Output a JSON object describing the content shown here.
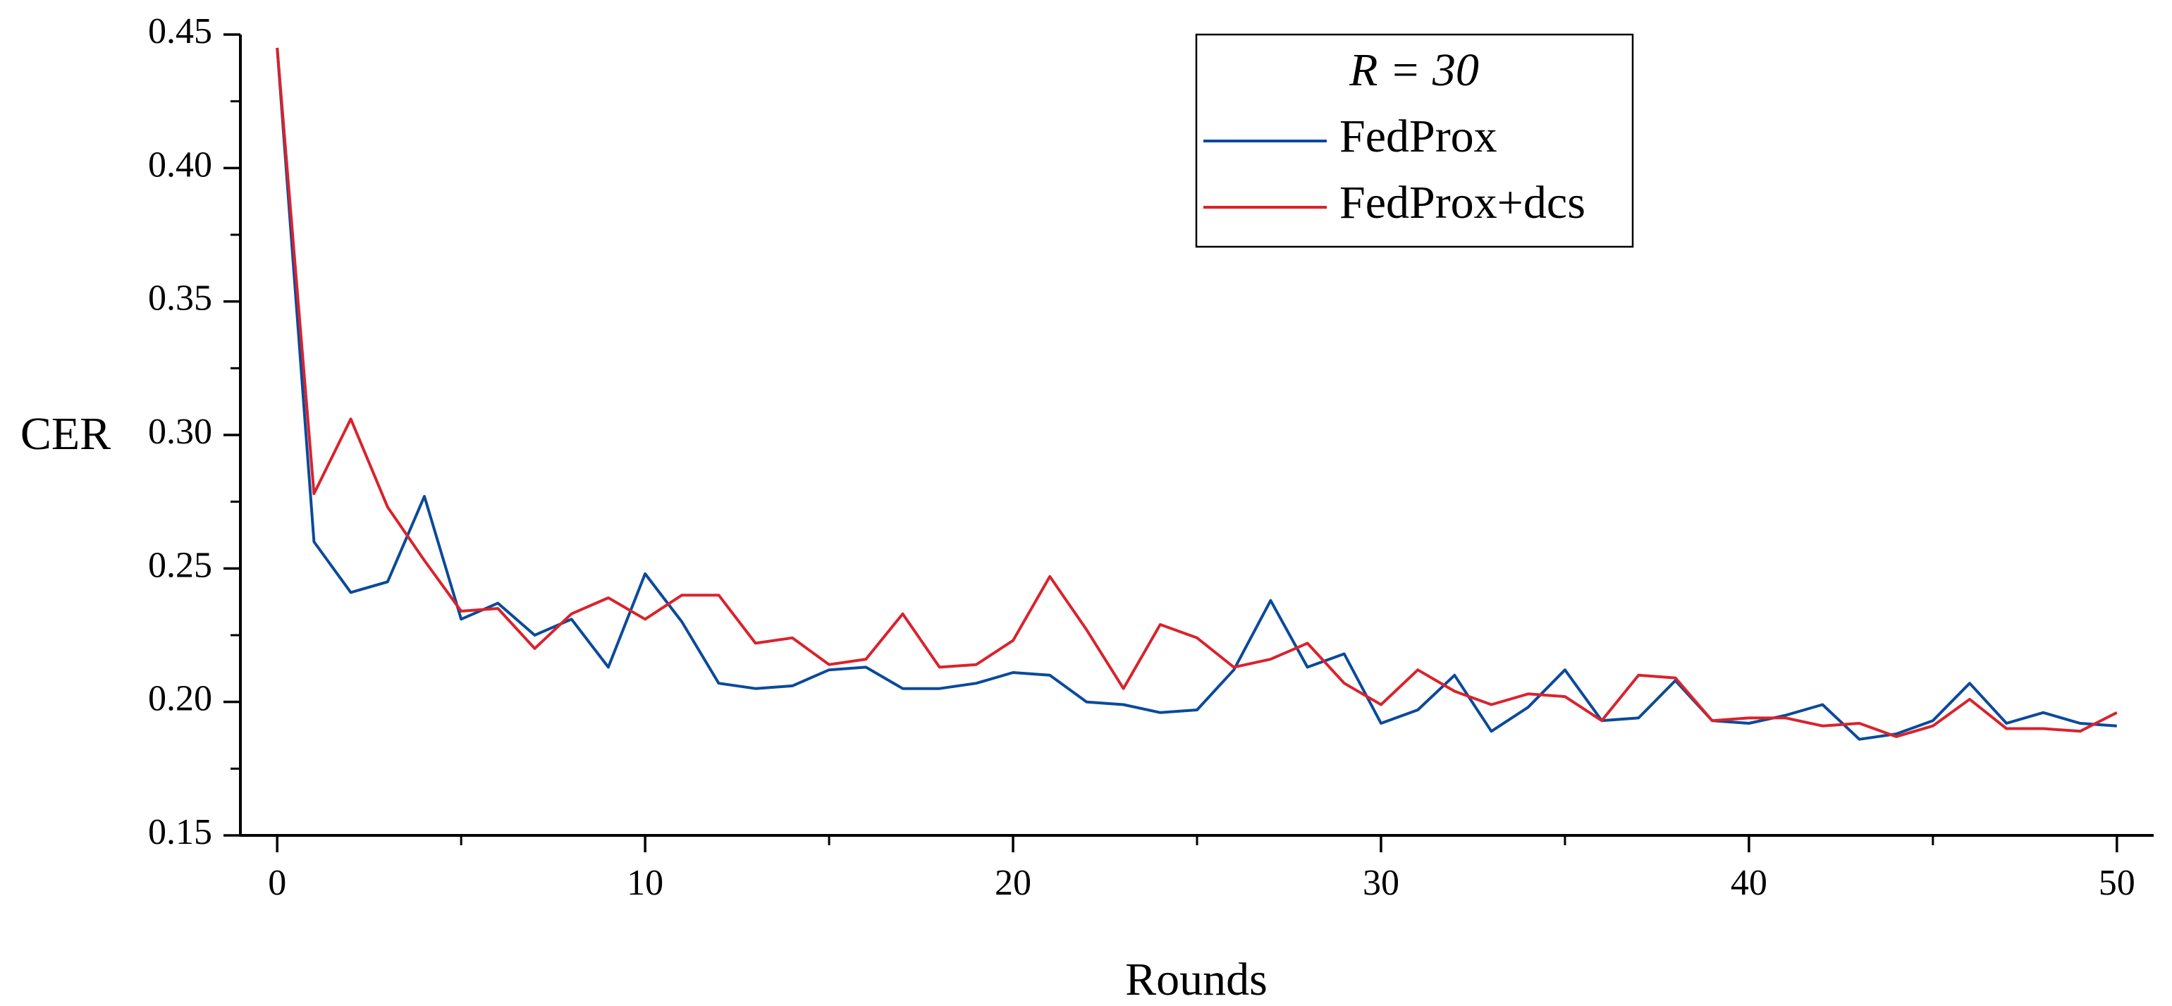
{
  "chart_data": {
    "type": "line",
    "title": "",
    "xlabel": "Rounds",
    "ylabel": "CER",
    "xlim": [
      -1,
      51.0
    ],
    "ylim": [
      0.15,
      0.45
    ],
    "x_ticks": [
      0,
      10,
      20,
      30,
      40,
      50
    ],
    "x_minor_ticks": [
      5,
      15,
      25,
      35,
      45
    ],
    "y_ticks": [
      0.15,
      0.2,
      0.25,
      0.3,
      0.35,
      0.4,
      0.45
    ],
    "y_tick_labels": [
      "0.15",
      "0.20",
      "0.25",
      "0.30",
      "0.35",
      "0.40",
      "0.45"
    ],
    "y_minor_ticks": [
      0.175,
      0.225,
      0.275,
      0.325,
      0.375,
      0.425
    ],
    "legend": {
      "position": "top-center",
      "title": "R = 30",
      "title_var": "R",
      "title_rest": " = 30"
    },
    "x": [
      0,
      1,
      2,
      3,
      4,
      5,
      6,
      7,
      8,
      9,
      10,
      11,
      12,
      13,
      14,
      15,
      16,
      17,
      18,
      19,
      20,
      21,
      22,
      23,
      24,
      25,
      26,
      27,
      28,
      29,
      30,
      31,
      32,
      33,
      34,
      35,
      36,
      37,
      38,
      39,
      40,
      41,
      42,
      43,
      44,
      45,
      46,
      47,
      48,
      49,
      50
    ],
    "series": [
      {
        "name": "FedProx",
        "color": "#0B4A9A",
        "values": [
          0.445,
          0.26,
          0.241,
          0.245,
          0.277,
          0.231,
          0.237,
          0.225,
          0.231,
          0.213,
          0.248,
          0.23,
          0.207,
          0.205,
          0.206,
          0.212,
          0.213,
          0.205,
          0.205,
          0.207,
          0.211,
          0.21,
          0.2,
          0.199,
          0.196,
          0.197,
          0.212,
          0.238,
          0.213,
          0.218,
          0.192,
          0.197,
          0.21,
          0.189,
          0.198,
          0.212,
          0.193,
          0.194,
          0.208,
          0.193,
          0.192,
          0.195,
          0.199,
          0.186,
          0.188,
          0.193,
          0.207,
          0.192,
          0.196,
          0.192,
          0.191
        ]
      },
      {
        "name": "FedProx+dcs",
        "color": "#D9232D",
        "values": [
          0.445,
          0.278,
          0.306,
          0.273,
          0.253,
          0.234,
          0.235,
          0.22,
          0.233,
          0.239,
          0.231,
          0.24,
          0.24,
          0.222,
          0.224,
          0.214,
          0.216,
          0.233,
          0.213,
          0.214,
          0.223,
          0.247,
          0.227,
          0.205,
          0.229,
          0.224,
          0.213,
          0.216,
          0.222,
          0.207,
          0.199,
          0.212,
          0.204,
          0.199,
          0.203,
          0.202,
          0.193,
          0.21,
          0.209,
          0.193,
          0.194,
          0.194,
          0.191,
          0.192,
          0.187,
          0.191,
          0.201,
          0.19,
          0.19,
          0.189,
          0.196
        ]
      }
    ]
  }
}
